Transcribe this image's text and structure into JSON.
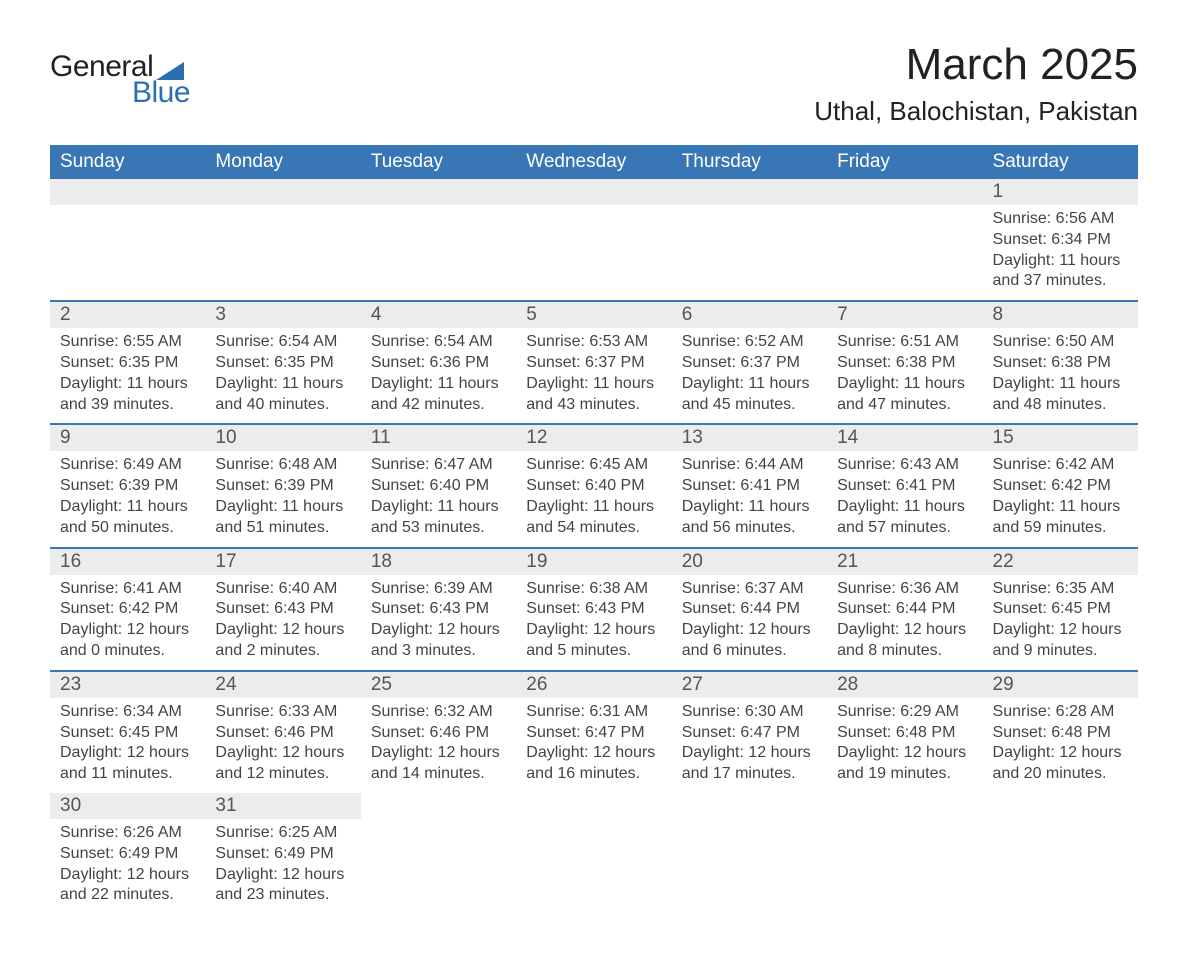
{
  "brand": {
    "name_main": "General",
    "name_sub": "Blue"
  },
  "header": {
    "month_title": "March 2025",
    "location": "Uthal, Balochistan, Pakistan"
  },
  "theme": {
    "header_bg": "#3976b5",
    "header_text": "#ffffff",
    "row_divider": "#3976b5",
    "daynum_bg": "#ececec",
    "daynum_text": "#555555",
    "body_text": "#444444",
    "background": "#ffffff",
    "brand_accent": "#2c6fb0"
  },
  "typography": {
    "month_title_fontsize": 44,
    "location_fontsize": 26,
    "dayheader_fontsize": 19,
    "daynum_fontsize": 19,
    "cell_fontsize": 16
  },
  "calendar": {
    "type": "table",
    "columns": [
      "Sunday",
      "Monday",
      "Tuesday",
      "Wednesday",
      "Thursday",
      "Friday",
      "Saturday"
    ],
    "weeks": [
      [
        {
          "blank": true
        },
        {
          "blank": true
        },
        {
          "blank": true
        },
        {
          "blank": true
        },
        {
          "blank": true
        },
        {
          "blank": true
        },
        {
          "day": "1",
          "sunrise": "Sunrise: 6:56 AM",
          "sunset": "Sunset: 6:34 PM",
          "daylight1": "Daylight: 11 hours",
          "daylight2": "and 37 minutes."
        }
      ],
      [
        {
          "day": "2",
          "sunrise": "Sunrise: 6:55 AM",
          "sunset": "Sunset: 6:35 PM",
          "daylight1": "Daylight: 11 hours",
          "daylight2": "and 39 minutes."
        },
        {
          "day": "3",
          "sunrise": "Sunrise: 6:54 AM",
          "sunset": "Sunset: 6:35 PM",
          "daylight1": "Daylight: 11 hours",
          "daylight2": "and 40 minutes."
        },
        {
          "day": "4",
          "sunrise": "Sunrise: 6:54 AM",
          "sunset": "Sunset: 6:36 PM",
          "daylight1": "Daylight: 11 hours",
          "daylight2": "and 42 minutes."
        },
        {
          "day": "5",
          "sunrise": "Sunrise: 6:53 AM",
          "sunset": "Sunset: 6:37 PM",
          "daylight1": "Daylight: 11 hours",
          "daylight2": "and 43 minutes."
        },
        {
          "day": "6",
          "sunrise": "Sunrise: 6:52 AM",
          "sunset": "Sunset: 6:37 PM",
          "daylight1": "Daylight: 11 hours",
          "daylight2": "and 45 minutes."
        },
        {
          "day": "7",
          "sunrise": "Sunrise: 6:51 AM",
          "sunset": "Sunset: 6:38 PM",
          "daylight1": "Daylight: 11 hours",
          "daylight2": "and 47 minutes."
        },
        {
          "day": "8",
          "sunrise": "Sunrise: 6:50 AM",
          "sunset": "Sunset: 6:38 PM",
          "daylight1": "Daylight: 11 hours",
          "daylight2": "and 48 minutes."
        }
      ],
      [
        {
          "day": "9",
          "sunrise": "Sunrise: 6:49 AM",
          "sunset": "Sunset: 6:39 PM",
          "daylight1": "Daylight: 11 hours",
          "daylight2": "and 50 minutes."
        },
        {
          "day": "10",
          "sunrise": "Sunrise: 6:48 AM",
          "sunset": "Sunset: 6:39 PM",
          "daylight1": "Daylight: 11 hours",
          "daylight2": "and 51 minutes."
        },
        {
          "day": "11",
          "sunrise": "Sunrise: 6:47 AM",
          "sunset": "Sunset: 6:40 PM",
          "daylight1": "Daylight: 11 hours",
          "daylight2": "and 53 minutes."
        },
        {
          "day": "12",
          "sunrise": "Sunrise: 6:45 AM",
          "sunset": "Sunset: 6:40 PM",
          "daylight1": "Daylight: 11 hours",
          "daylight2": "and 54 minutes."
        },
        {
          "day": "13",
          "sunrise": "Sunrise: 6:44 AM",
          "sunset": "Sunset: 6:41 PM",
          "daylight1": "Daylight: 11 hours",
          "daylight2": "and 56 minutes."
        },
        {
          "day": "14",
          "sunrise": "Sunrise: 6:43 AM",
          "sunset": "Sunset: 6:41 PM",
          "daylight1": "Daylight: 11 hours",
          "daylight2": "and 57 minutes."
        },
        {
          "day": "15",
          "sunrise": "Sunrise: 6:42 AM",
          "sunset": "Sunset: 6:42 PM",
          "daylight1": "Daylight: 11 hours",
          "daylight2": "and 59 minutes."
        }
      ],
      [
        {
          "day": "16",
          "sunrise": "Sunrise: 6:41 AM",
          "sunset": "Sunset: 6:42 PM",
          "daylight1": "Daylight: 12 hours",
          "daylight2": "and 0 minutes."
        },
        {
          "day": "17",
          "sunrise": "Sunrise: 6:40 AM",
          "sunset": "Sunset: 6:43 PM",
          "daylight1": "Daylight: 12 hours",
          "daylight2": "and 2 minutes."
        },
        {
          "day": "18",
          "sunrise": "Sunrise: 6:39 AM",
          "sunset": "Sunset: 6:43 PM",
          "daylight1": "Daylight: 12 hours",
          "daylight2": "and 3 minutes."
        },
        {
          "day": "19",
          "sunrise": "Sunrise: 6:38 AM",
          "sunset": "Sunset: 6:43 PM",
          "daylight1": "Daylight: 12 hours",
          "daylight2": "and 5 minutes."
        },
        {
          "day": "20",
          "sunrise": "Sunrise: 6:37 AM",
          "sunset": "Sunset: 6:44 PM",
          "daylight1": "Daylight: 12 hours",
          "daylight2": "and 6 minutes."
        },
        {
          "day": "21",
          "sunrise": "Sunrise: 6:36 AM",
          "sunset": "Sunset: 6:44 PM",
          "daylight1": "Daylight: 12 hours",
          "daylight2": "and 8 minutes."
        },
        {
          "day": "22",
          "sunrise": "Sunrise: 6:35 AM",
          "sunset": "Sunset: 6:45 PM",
          "daylight1": "Daylight: 12 hours",
          "daylight2": "and 9 minutes."
        }
      ],
      [
        {
          "day": "23",
          "sunrise": "Sunrise: 6:34 AM",
          "sunset": "Sunset: 6:45 PM",
          "daylight1": "Daylight: 12 hours",
          "daylight2": "and 11 minutes."
        },
        {
          "day": "24",
          "sunrise": "Sunrise: 6:33 AM",
          "sunset": "Sunset: 6:46 PM",
          "daylight1": "Daylight: 12 hours",
          "daylight2": "and 12 minutes."
        },
        {
          "day": "25",
          "sunrise": "Sunrise: 6:32 AM",
          "sunset": "Sunset: 6:46 PM",
          "daylight1": "Daylight: 12 hours",
          "daylight2": "and 14 minutes."
        },
        {
          "day": "26",
          "sunrise": "Sunrise: 6:31 AM",
          "sunset": "Sunset: 6:47 PM",
          "daylight1": "Daylight: 12 hours",
          "daylight2": "and 16 minutes."
        },
        {
          "day": "27",
          "sunrise": "Sunrise: 6:30 AM",
          "sunset": "Sunset: 6:47 PM",
          "daylight1": "Daylight: 12 hours",
          "daylight2": "and 17 minutes."
        },
        {
          "day": "28",
          "sunrise": "Sunrise: 6:29 AM",
          "sunset": "Sunset: 6:48 PM",
          "daylight1": "Daylight: 12 hours",
          "daylight2": "and 19 minutes."
        },
        {
          "day": "29",
          "sunrise": "Sunrise: 6:28 AM",
          "sunset": "Sunset: 6:48 PM",
          "daylight1": "Daylight: 12 hours",
          "daylight2": "and 20 minutes."
        }
      ],
      [
        {
          "day": "30",
          "sunrise": "Sunrise: 6:26 AM",
          "sunset": "Sunset: 6:49 PM",
          "daylight1": "Daylight: 12 hours",
          "daylight2": "and 22 minutes."
        },
        {
          "day": "31",
          "sunrise": "Sunrise: 6:25 AM",
          "sunset": "Sunset: 6:49 PM",
          "daylight1": "Daylight: 12 hours",
          "daylight2": "and 23 minutes."
        },
        {
          "blank": true
        },
        {
          "blank": true
        },
        {
          "blank": true
        },
        {
          "blank": true
        },
        {
          "blank": true
        }
      ]
    ]
  }
}
